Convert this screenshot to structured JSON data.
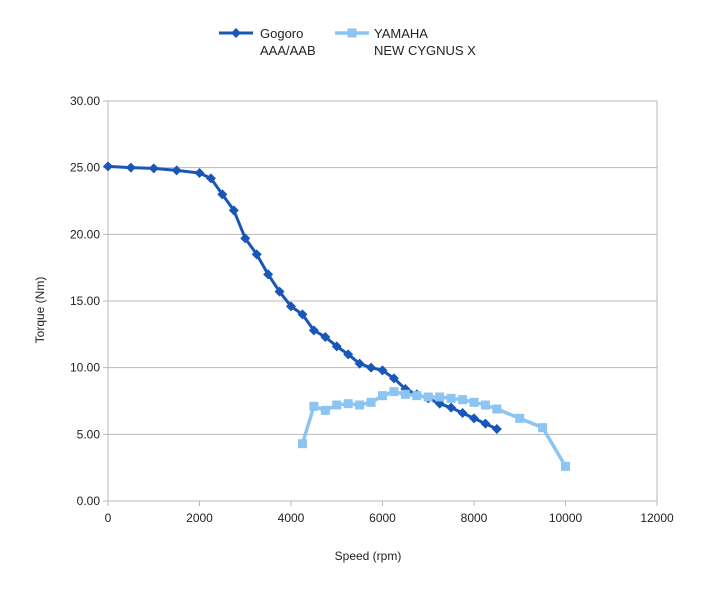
{
  "chart_data": {
    "type": "line",
    "xlabel": "Speed (rpm)",
    "ylabel": "Torque (Nm)",
    "xlim": [
      0,
      12000
    ],
    "ylim": [
      0,
      30
    ],
    "x_ticks": [
      "0",
      "2000",
      "4000",
      "6000",
      "8000",
      "10000",
      "12000"
    ],
    "y_ticks": [
      "0.00",
      "5.00",
      "10.00",
      "15.00",
      "20.00",
      "25.00",
      "30.00"
    ],
    "grid": "horizontal",
    "legend_position": "top",
    "series": [
      {
        "name_lines": [
          "Gogoro",
          "AAA/AAB"
        ],
        "color": "#1a56b8",
        "marker": "diamond",
        "points": [
          [
            0,
            25.1
          ],
          [
            500,
            25.0
          ],
          [
            1000,
            24.95
          ],
          [
            1500,
            24.8
          ],
          [
            2000,
            24.6
          ],
          [
            2250,
            24.2
          ],
          [
            2500,
            23.0
          ],
          [
            2750,
            21.8
          ],
          [
            3000,
            19.7
          ],
          [
            3250,
            18.5
          ],
          [
            3500,
            17.0
          ],
          [
            3750,
            15.7
          ],
          [
            4000,
            14.6
          ],
          [
            4250,
            14.0
          ],
          [
            4500,
            12.8
          ],
          [
            4750,
            12.3
          ],
          [
            5000,
            11.6
          ],
          [
            5250,
            11.0
          ],
          [
            5500,
            10.3
          ],
          [
            5750,
            10.0
          ],
          [
            6000,
            9.8
          ],
          [
            6250,
            9.2
          ],
          [
            6500,
            8.4
          ],
          [
            6750,
            8.0
          ],
          [
            7000,
            7.7
          ],
          [
            7250,
            7.3
          ],
          [
            7500,
            7.0
          ],
          [
            7750,
            6.6
          ],
          [
            8000,
            6.2
          ],
          [
            8250,
            5.8
          ],
          [
            8500,
            5.4
          ]
        ]
      },
      {
        "name_lines": [
          "YAMAHA",
          "NEW CYGNUS X"
        ],
        "color": "#8cc4f2",
        "marker": "square",
        "points": [
          [
            4250,
            4.3
          ],
          [
            4500,
            7.1
          ],
          [
            4750,
            6.8
          ],
          [
            5000,
            7.2
          ],
          [
            5250,
            7.3
          ],
          [
            5500,
            7.2
          ],
          [
            5750,
            7.4
          ],
          [
            6000,
            7.9
          ],
          [
            6250,
            8.2
          ],
          [
            6500,
            8.0
          ],
          [
            6750,
            7.9
          ],
          [
            7000,
            7.8
          ],
          [
            7250,
            7.8
          ],
          [
            7500,
            7.7
          ],
          [
            7750,
            7.6
          ],
          [
            8000,
            7.4
          ],
          [
            8250,
            7.2
          ],
          [
            8500,
            6.9
          ],
          [
            9000,
            6.2
          ],
          [
            9500,
            5.5
          ],
          [
            10000,
            2.6
          ]
        ]
      }
    ]
  }
}
